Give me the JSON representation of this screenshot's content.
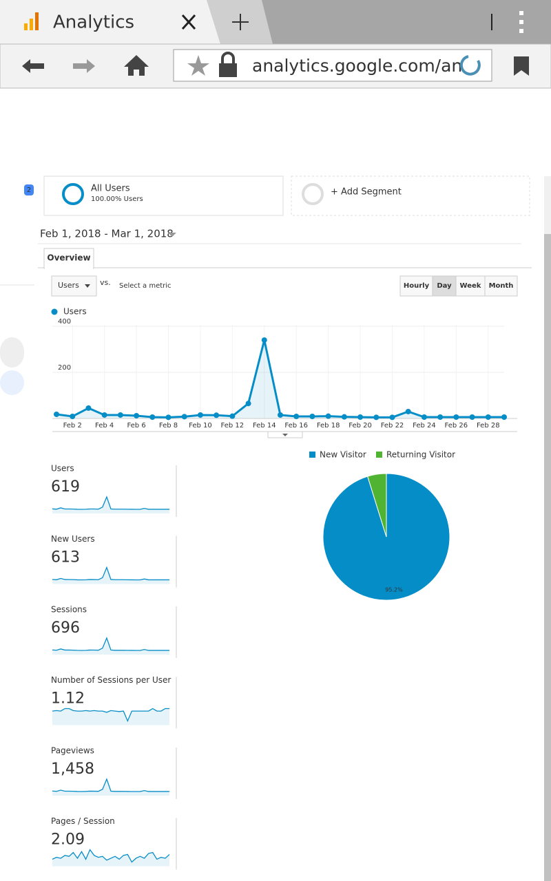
{
  "browser": {
    "tab_title": "Analytics",
    "url": "analytics.google.com/an"
  },
  "segments": {
    "badge": "2",
    "all_users": "All Users",
    "all_users_pct": "100.00% Users",
    "add": "+ Add Segment"
  },
  "date_range": "Feb 1, 2018 - Mar 1, 2018",
  "tab": "Overview",
  "controls": {
    "metric": "Users",
    "vs": "vs.",
    "select": "Select a metric",
    "periods": [
      "Hourly",
      "Day",
      "Week",
      "Month"
    ],
    "selected_period": 1
  },
  "chart_data": [
    {
      "type": "line",
      "categories": [
        null,
        "Feb 2",
        null,
        "Feb 4",
        null,
        "Feb 6",
        null,
        "Feb 8",
        null,
        "Feb 10",
        null,
        "Feb 12",
        null,
        "Feb 14",
        null,
        "Feb 16",
        null,
        "Feb 18",
        null,
        "Feb 20",
        null,
        "Feb 22",
        null,
        "Feb 24",
        null,
        "Feb 26",
        null,
        "Feb 28",
        null
      ],
      "series": [
        {
          "name": "Users",
          "color": "#058dc7",
          "values": [
            18,
            9,
            45,
            15,
            15,
            12,
            6,
            5,
            8,
            15,
            14,
            10,
            65,
            340,
            15,
            9,
            9,
            10,
            7,
            6,
            5,
            5,
            30,
            6,
            6,
            6,
            6,
            6,
            6
          ]
        }
      ],
      "ylim": [
        0,
        400
      ],
      "yticks": [
        200,
        400
      ],
      "grid": true
    },
    {
      "type": "pie",
      "categories": [
        "New Visitor",
        "Returning Visitor"
      ],
      "values": [
        95.2,
        4.8
      ],
      "value_labels": [
        "95.2%",
        null
      ],
      "colors": [
        "#058dc7",
        "#50b432"
      ]
    }
  ],
  "metrics": [
    {
      "name": "Users",
      "value": "619",
      "sparkline": [
        18,
        9,
        45,
        15,
        15,
        12,
        6,
        5,
        8,
        15,
        14,
        10,
        65,
        340,
        15,
        9,
        9,
        10,
        7,
        6,
        5,
        5,
        30,
        6,
        6,
        6,
        6,
        6,
        6
      ]
    },
    {
      "name": "New Users",
      "value": "613",
      "sparkline": [
        17,
        9,
        44,
        15,
        14,
        12,
        6,
        5,
        8,
        15,
        13,
        10,
        64,
        338,
        15,
        9,
        9,
        10,
        7,
        6,
        5,
        5,
        29,
        6,
        6,
        6,
        6,
        6,
        6
      ]
    },
    {
      "name": "Sessions",
      "value": "696",
      "sparkline": [
        20,
        11,
        48,
        17,
        17,
        14,
        8,
        6,
        9,
        17,
        16,
        12,
        70,
        355,
        17,
        10,
        10,
        11,
        8,
        7,
        6,
        6,
        33,
        7,
        7,
        7,
        7,
        7,
        7
      ]
    },
    {
      "name": "Number of Sessions per User",
      "value": "1.12",
      "sparkline": [
        1.1,
        1.12,
        1.1,
        1.2,
        1.2,
        1.12,
        1.1,
        1.1,
        1.12,
        1.1,
        1.12,
        1.1,
        1.1,
        1.05,
        1.12,
        1.1,
        1.08,
        1.1,
        0.7,
        1.1,
        1.1,
        1.1,
        1.1,
        1.1,
        1.2,
        1.1,
        1.1,
        1.2,
        1.2
      ]
    },
    {
      "name": "Pageviews",
      "value": "1,458",
      "sparkline": [
        40,
        22,
        90,
        33,
        33,
        28,
        14,
        12,
        19,
        35,
        30,
        24,
        140,
        720,
        33,
        20,
        20,
        22,
        15,
        13,
        12,
        12,
        65,
        14,
        14,
        14,
        14,
        14,
        14
      ]
    },
    {
      "name": "Pages / Session",
      "value": "2.09",
      "sparkline": [
        1.9,
        2.1,
        2.0,
        2.3,
        2.2,
        2.6,
        2.0,
        2.7,
        1.9,
        2.9,
        2.3,
        2.1,
        2.2,
        1.8,
        2.0,
        2.2,
        1.9,
        2.3,
        2.4,
        1.6,
        2.0,
        2.2,
        2.0,
        2.5,
        2.6,
        1.9,
        2.1,
        2.0,
        2.4
      ]
    }
  ]
}
